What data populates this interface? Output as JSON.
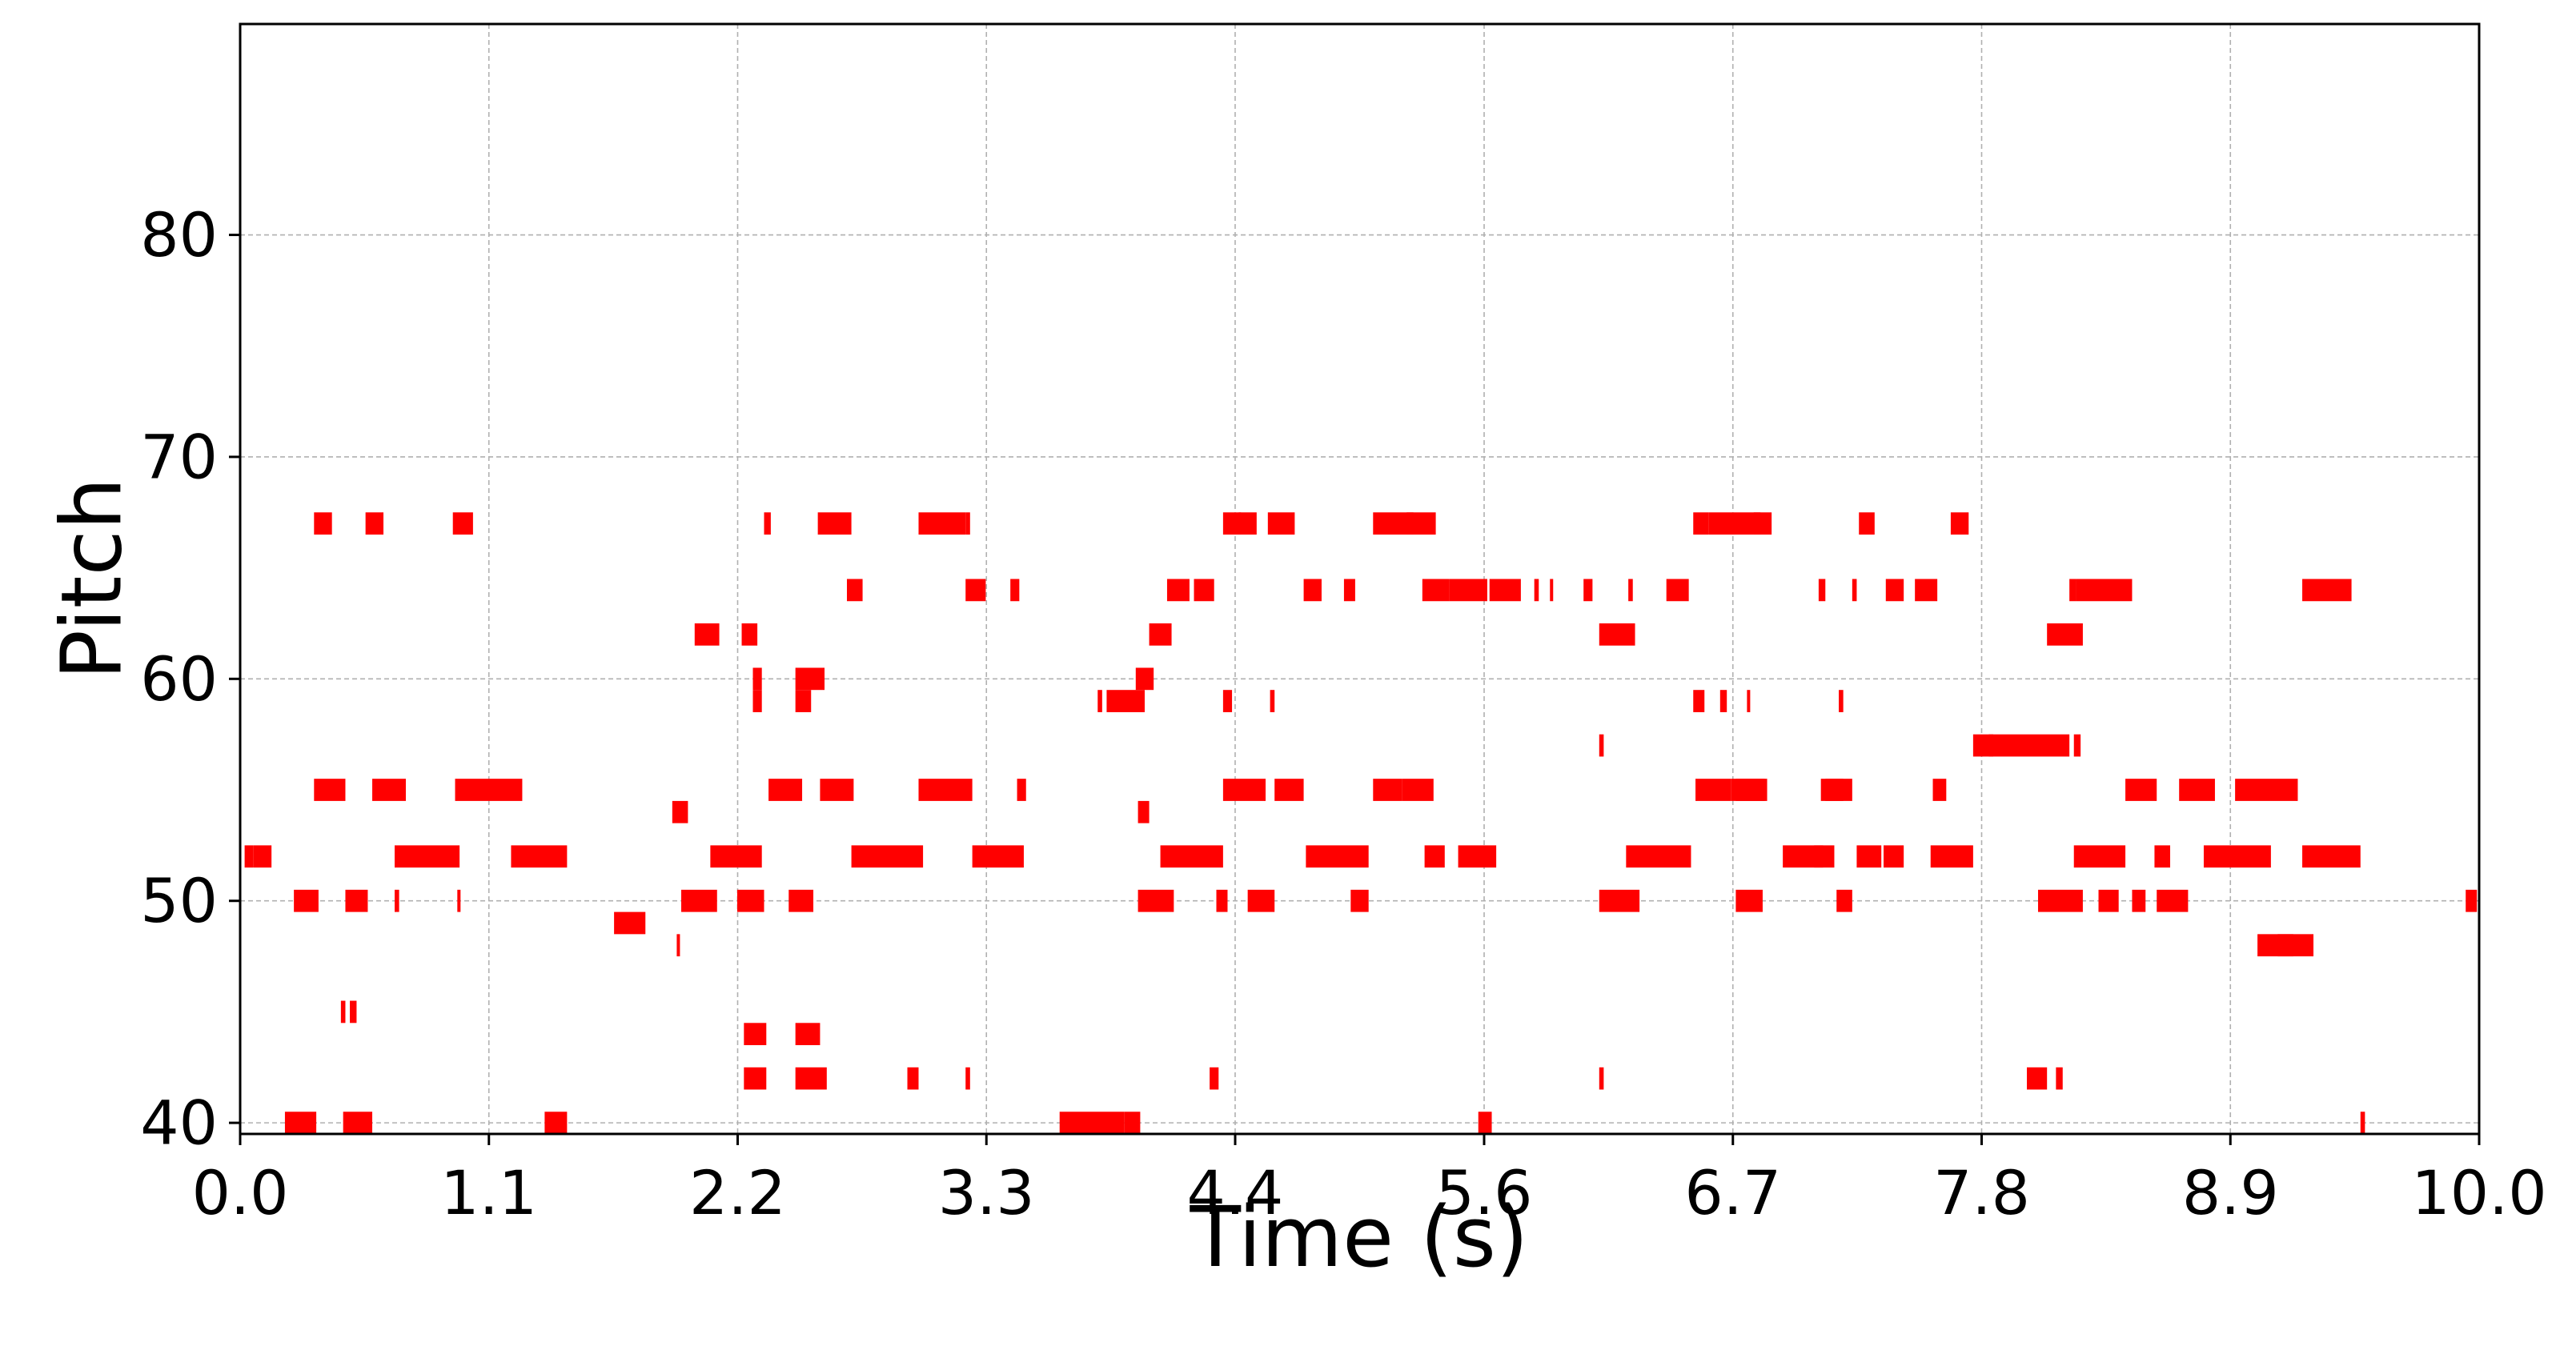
{
  "chart_data": {
    "type": "piano-roll",
    "xlabel": "Time (s)",
    "ylabel": "Pitch",
    "xlim": [
      0.0,
      10.0
    ],
    "ylim": [
      39.5,
      89.5
    ],
    "x_ticks": [
      "0.0",
      "1.1",
      "2.2",
      "3.3",
      "4.4",
      "5.6",
      "6.7",
      "7.8",
      "8.9",
      "10.0"
    ],
    "x_tick_values": [
      0.0,
      1.111,
      2.222,
      3.333,
      4.444,
      5.556,
      6.667,
      7.778,
      8.889,
      10.0
    ],
    "y_ticks": [
      "40",
      "50",
      "60",
      "70",
      "80"
    ],
    "y_tick_values": [
      40,
      50,
      60,
      70,
      80
    ],
    "grid": true,
    "color": "#ff0000",
    "notes": [
      [
        0.02,
        0.06,
        52
      ],
      [
        0.06,
        0.14,
        52
      ],
      [
        0.2,
        0.34,
        40
      ],
      [
        0.24,
        0.35,
        50
      ],
      [
        0.33,
        0.41,
        67
      ],
      [
        0.33,
        0.47,
        55
      ],
      [
        0.45,
        0.47,
        45
      ],
      [
        0.49,
        0.52,
        45
      ],
      [
        0.46,
        0.59,
        40
      ],
      [
        0.47,
        0.57,
        50
      ],
      [
        0.56,
        0.64,
        67
      ],
      [
        0.59,
        0.74,
        55
      ],
      [
        0.69,
        0.71,
        50
      ],
      [
        0.69,
        0.98,
        52
      ],
      [
        0.95,
        1.04,
        67
      ],
      [
        0.96,
        1.26,
        55
      ],
      [
        0.97,
        0.98,
        50
      ],
      [
        1.21,
        1.46,
        52
      ],
      [
        1.36,
        1.46,
        40
      ],
      [
        1.67,
        1.81,
        49
      ],
      [
        1.93,
        2.0,
        54
      ],
      [
        1.95,
        1.96,
        48
      ],
      [
        1.97,
        2.13,
        50
      ],
      [
        2.03,
        2.14,
        62
      ],
      [
        2.1,
        2.33,
        52
      ],
      [
        2.22,
        2.34,
        50
      ],
      [
        2.24,
        2.31,
        62
      ],
      [
        2.25,
        2.35,
        44
      ],
      [
        2.25,
        2.35,
        42
      ],
      [
        2.29,
        2.33,
        60
      ],
      [
        2.29,
        2.33,
        59
      ],
      [
        2.34,
        2.37,
        67
      ],
      [
        2.36,
        2.51,
        55
      ],
      [
        2.45,
        2.56,
        50
      ],
      [
        2.48,
        2.59,
        44
      ],
      [
        2.48,
        2.62,
        42
      ],
      [
        2.48,
        2.55,
        59
      ],
      [
        2.48,
        2.61,
        60
      ],
      [
        2.58,
        2.73,
        67
      ],
      [
        2.59,
        2.74,
        55
      ],
      [
        2.71,
        2.78,
        64
      ],
      [
        2.73,
        3.05,
        52
      ],
      [
        2.98,
        3.03,
        42
      ],
      [
        3.03,
        3.27,
        55
      ],
      [
        3.03,
        3.24,
        67
      ],
      [
        3.24,
        3.26,
        67
      ],
      [
        3.24,
        3.26,
        42
      ],
      [
        3.24,
        3.33,
        64
      ],
      [
        3.27,
        3.5,
        52
      ],
      [
        3.44,
        3.48,
        64
      ],
      [
        3.47,
        3.51,
        55
      ],
      [
        3.66,
        3.95,
        40
      ],
      [
        3.83,
        3.85,
        59
      ],
      [
        3.87,
        4.04,
        59
      ],
      [
        3.95,
        4.02,
        40
      ],
      [
        4.0,
        4.08,
        60
      ],
      [
        4.01,
        4.06,
        54
      ],
      [
        4.01,
        4.17,
        50
      ],
      [
        4.06,
        4.16,
        62
      ],
      [
        4.11,
        4.39,
        52
      ],
      [
        4.14,
        4.24,
        64
      ],
      [
        4.26,
        4.35,
        64
      ],
      [
        4.33,
        4.37,
        42
      ],
      [
        4.36,
        4.41,
        50
      ],
      [
        4.39,
        4.43,
        59
      ],
      [
        4.39,
        4.47,
        67
      ],
      [
        4.39,
        4.58,
        55
      ],
      [
        4.46,
        4.54,
        67
      ],
      [
        4.5,
        4.62,
        50
      ],
      [
        4.6,
        4.62,
        59
      ],
      [
        4.59,
        4.71,
        67
      ],
      [
        4.62,
        4.75,
        55
      ],
      [
        4.75,
        4.83,
        64
      ],
      [
        4.76,
        5.04,
        52
      ],
      [
        4.93,
        4.98,
        64
      ],
      [
        4.96,
        5.04,
        50
      ],
      [
        5.06,
        5.19,
        55
      ],
      [
        5.06,
        5.24,
        67
      ],
      [
        5.19,
        5.33,
        55
      ],
      [
        5.21,
        5.34,
        67
      ],
      [
        5.28,
        5.4,
        64
      ],
      [
        5.29,
        5.38,
        52
      ],
      [
        5.4,
        5.57,
        64
      ],
      [
        5.44,
        5.61,
        52
      ],
      [
        5.58,
        5.72,
        64
      ],
      [
        5.53,
        5.59,
        40
      ],
      [
        5.78,
        5.8,
        64
      ],
      [
        5.85,
        5.86,
        64
      ],
      [
        6.0,
        6.04,
        64
      ],
      [
        6.07,
        6.09,
        57
      ],
      [
        6.07,
        6.25,
        50
      ],
      [
        6.07,
        6.23,
        62
      ],
      [
        6.07,
        6.09,
        42
      ],
      [
        6.2,
        6.22,
        64
      ],
      [
        6.19,
        6.48,
        52
      ],
      [
        6.37,
        6.47,
        64
      ],
      [
        6.49,
        6.54,
        59
      ],
      [
        6.49,
        6.56,
        67
      ],
      [
        6.5,
        6.66,
        55
      ],
      [
        6.56,
        6.79,
        67
      ],
      [
        6.61,
        6.64,
        59
      ],
      [
        6.66,
        6.81,
        55
      ],
      [
        6.68,
        6.8,
        50
      ],
      [
        6.73,
        6.74,
        59
      ],
      [
        6.76,
        6.84,
        67
      ],
      [
        6.68,
        6.82,
        55
      ],
      [
        6.89,
        7.07,
        52
      ],
      [
        7.05,
        7.08,
        64
      ],
      [
        7.03,
        7.12,
        52
      ],
      [
        7.06,
        7.16,
        55
      ],
      [
        7.08,
        7.2,
        55
      ],
      [
        7.14,
        7.16,
        59
      ],
      [
        7.13,
        7.2,
        50
      ],
      [
        7.2,
        7.22,
        64
      ],
      [
        7.23,
        7.3,
        67
      ],
      [
        7.22,
        7.33,
        52
      ],
      [
        7.34,
        7.43,
        52
      ],
      [
        7.35,
        7.43,
        64
      ],
      [
        7.48,
        7.58,
        64
      ],
      [
        7.56,
        7.62,
        55
      ],
      [
        7.55,
        7.74,
        52
      ],
      [
        7.64,
        7.72,
        67
      ],
      [
        7.74,
        7.83,
        57
      ],
      [
        7.81,
        8.17,
        57
      ],
      [
        7.98,
        8.07,
        42
      ],
      [
        8.03,
        8.23,
        50
      ],
      [
        8.07,
        8.23,
        62
      ],
      [
        8.11,
        8.14,
        42
      ],
      [
        8.19,
        8.22,
        57
      ],
      [
        8.17,
        8.2,
        64
      ],
      [
        8.2,
        8.45,
        64
      ],
      [
        8.19,
        8.42,
        52
      ],
      [
        8.3,
        8.39,
        50
      ],
      [
        8.42,
        8.56,
        55
      ],
      [
        8.45,
        8.51,
        50
      ],
      [
        8.55,
        8.62,
        52
      ],
      [
        8.56,
        8.7,
        50
      ],
      [
        8.66,
        8.82,
        55
      ],
      [
        8.77,
        9.07,
        52
      ],
      [
        8.91,
        9.19,
        55
      ],
      [
        9.01,
        9.17,
        48
      ],
      [
        9.1,
        9.26,
        48
      ],
      [
        9.21,
        9.43,
        64
      ],
      [
        9.21,
        9.47,
        52
      ],
      [
        9.47,
        9.49,
        40
      ],
      [
        9.94,
        9.99,
        50
      ]
    ]
  }
}
